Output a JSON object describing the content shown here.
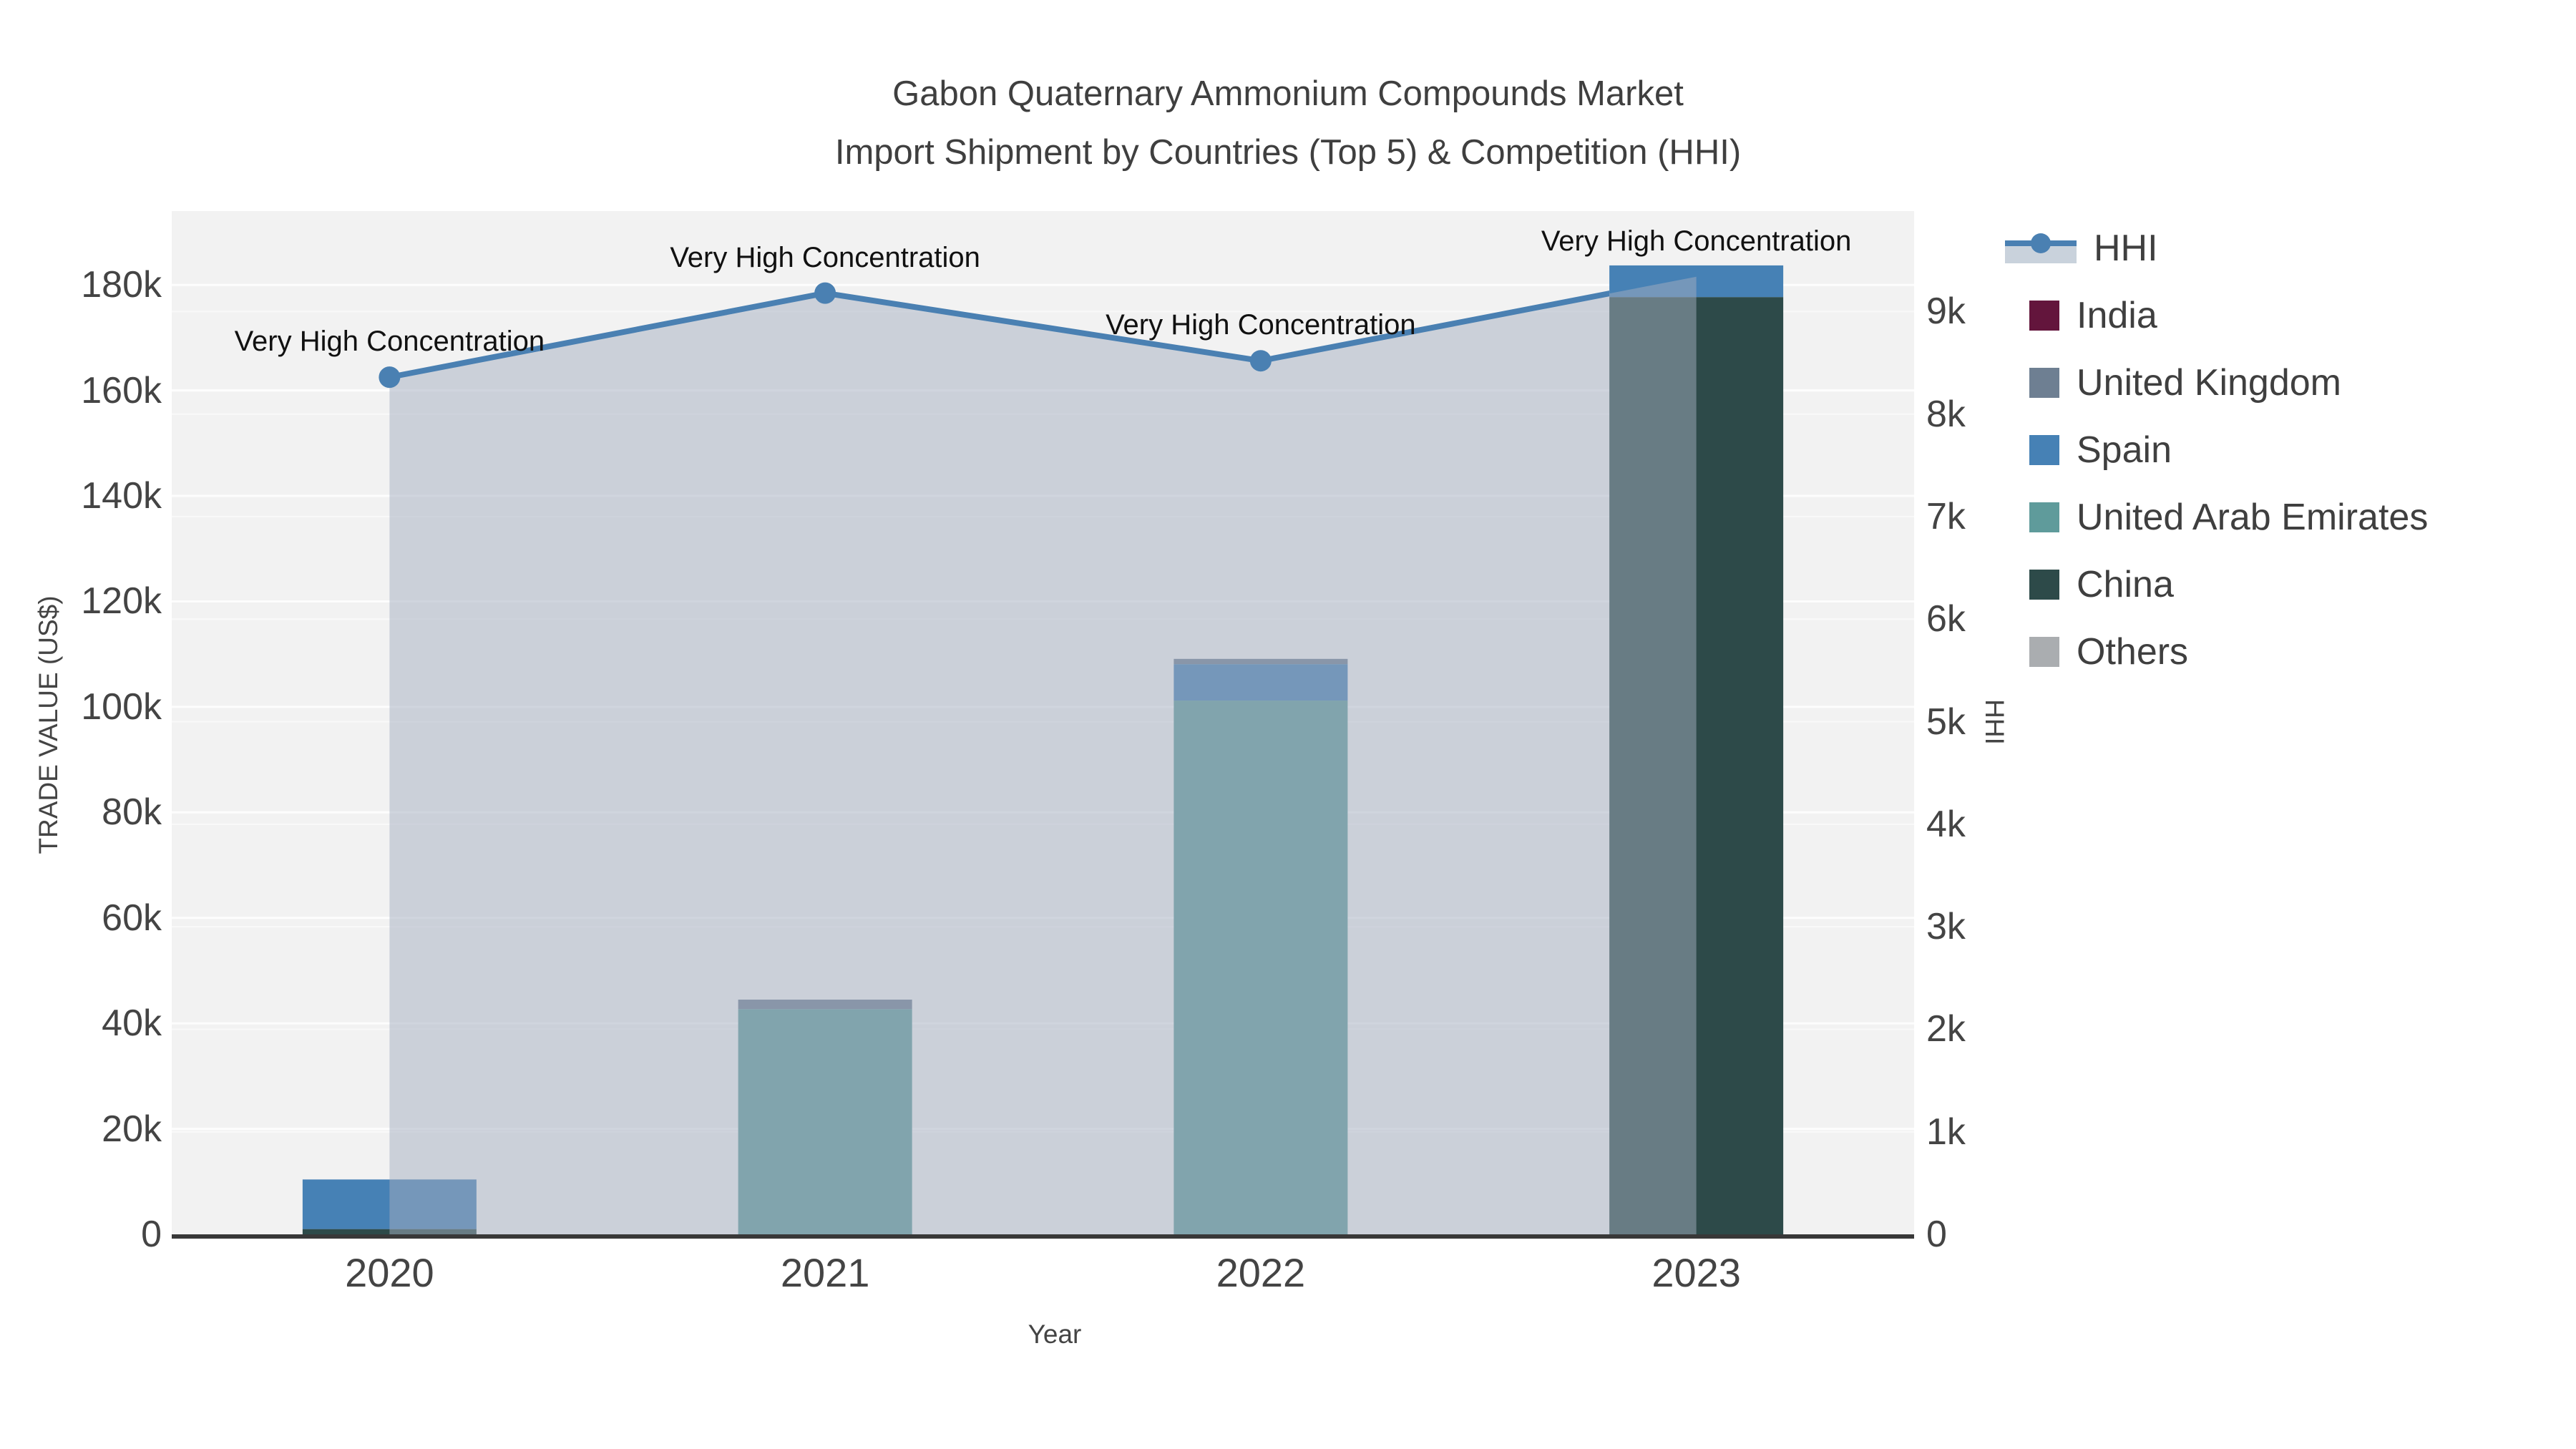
{
  "chart_data": {
    "type": "bar+line",
    "title_line1": "Gabon Quaternary Ammonium Compounds Market",
    "title_line2": "Import Shipment by Countries (Top 5) & Competition (HHI)",
    "categories": [
      "2020",
      "2021",
      "2022",
      "2023"
    ],
    "series": [
      {
        "name": "India",
        "color": "#63153c",
        "values": [
          0,
          0,
          0,
          0
        ]
      },
      {
        "name": "United Kingdom",
        "color": "#6e7f92",
        "values": [
          0,
          1800,
          1000,
          0
        ]
      },
      {
        "name": "Spain",
        "color": "#4681b5",
        "values": [
          9400,
          0,
          6900,
          6000
        ]
      },
      {
        "name": "United Arab Emirates",
        "color": "#5f9b9b",
        "values": [
          0,
          42700,
          101200,
          0
        ]
      },
      {
        "name": "China",
        "color": "#2d4a49",
        "values": [
          1000,
          0,
          0,
          177700
        ]
      },
      {
        "name": "Others",
        "color": "#aaadb0",
        "values": [
          0,
          0,
          0,
          0
        ]
      }
    ],
    "stack_order": [
      "China",
      "United Arab Emirates",
      "Spain",
      "United Kingdom",
      "India",
      "Others"
    ],
    "hhi": {
      "name": "HHI",
      "color": "#4a80b2",
      "fill_color": "rgba(163,174,192,0.5)",
      "values": [
        8360,
        9180,
        8520,
        9340
      ]
    },
    "annotation_text": "Very High Concentration",
    "xlabel": "Year",
    "ylabel_left": "TRADE VALUE (US$)",
    "ylabel_right": "HHI",
    "left_ticks": [
      "0",
      "20k",
      "40k",
      "60k",
      "80k",
      "100k",
      "120k",
      "140k",
      "160k",
      "180k"
    ],
    "right_ticks": [
      "0",
      "1k",
      "2k",
      "3k",
      "4k",
      "5k",
      "6k",
      "7k",
      "8k",
      "9k"
    ],
    "left_axis_range": [
      0,
      194000
    ],
    "right_axis_range": [
      0,
      9980
    ],
    "grid": true,
    "legend_position": "right",
    "plot_bg_color": "#f2f2f2",
    "grid_color": "#ffffff",
    "axisline_color": "#383838"
  }
}
